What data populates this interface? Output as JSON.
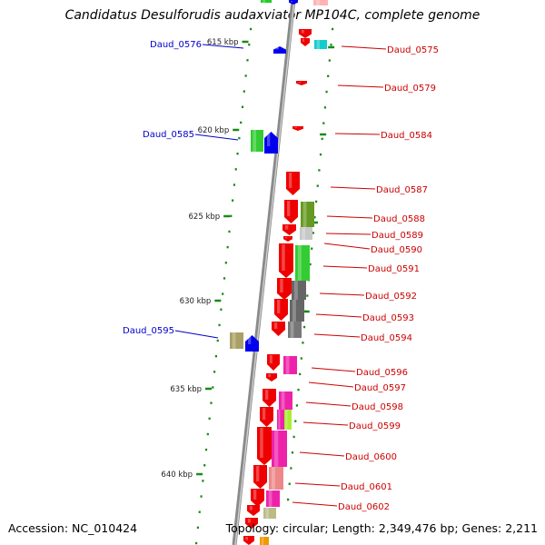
{
  "title": "Candidatus Desulforudis audaxviator MP104C, complete genome",
  "footer": {
    "accession": "Accession: NC_010424",
    "topology": "Topology: circular; Length: 2,349,476 bp; Genes: 2,211"
  },
  "colors": {
    "forward_label": "#0000cc",
    "reverse_label": "#cc0000",
    "tick": "#1a8a1a",
    "backbone": "#8a8a8a"
  },
  "kbp_marks": [
    "615 kbp",
    "620 kbp",
    "625 kbp",
    "630 kbp",
    "635 kbp",
    "640 kbp"
  ],
  "genes_forward": [
    "Daud_0576",
    "Daud_0585",
    "Daud_0595"
  ],
  "genes_reverse": [
    "Daud_0575",
    "Daud_0579",
    "Daud_0584",
    "Daud_0587",
    "Daud_0588",
    "Daud_0589",
    "Daud_0590",
    "Daud_0591",
    "Daud_0592",
    "Daud_0593",
    "Daud_0594",
    "Daud_0596",
    "Daud_0597",
    "Daud_0598",
    "Daud_0599",
    "Daud_0600",
    "Daud_0601",
    "Daud_0602"
  ]
}
